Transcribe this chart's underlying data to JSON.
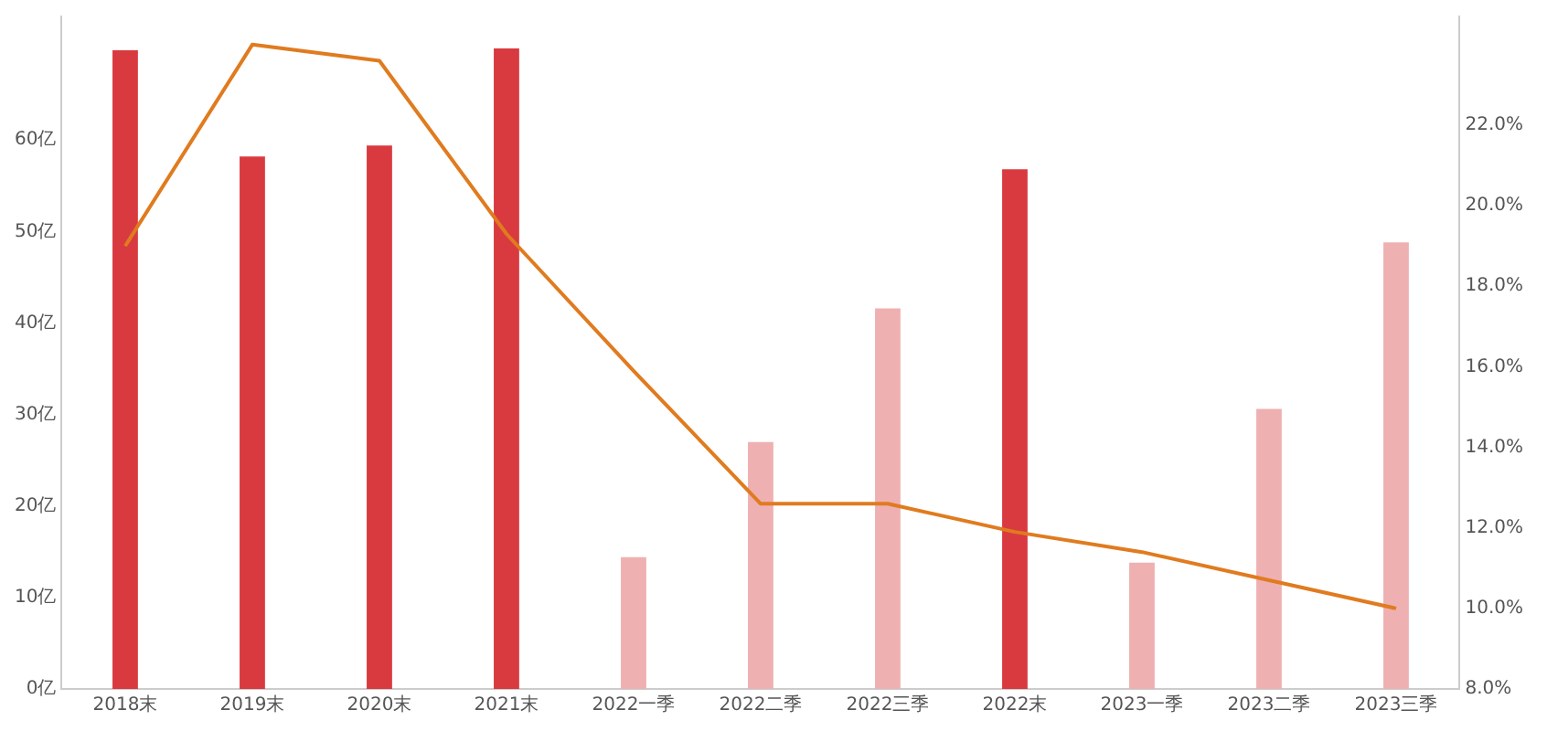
{
  "chart_data": {
    "type": "bar",
    "categories": [
      "2018末",
      "2019末",
      "2020末",
      "2021末",
      "2022一季",
      "2022二季",
      "2022三季",
      "2022末",
      "2023一季",
      "2023二季",
      "2023三季"
    ],
    "series": [
      {
        "colors": [
          "#d93a3f",
          "#d93a3f",
          "#d93a3f",
          "#d93a3f",
          "#efb0b2",
          "#efb0b2",
          "#efb0b2",
          "#d93a3f",
          "#efb0b2",
          "#efb0b2",
          "#efb0b2"
        ],
        "values": [
          69.8,
          58.2,
          59.4,
          70,
          14.4,
          27,
          41.6,
          56.8,
          13.8,
          30.6,
          48.8
        ]
      },
      {
        "type": "line",
        "axis": "y2",
        "color": "#e07b1f",
        "values": [
          19.0,
          24.0,
          23.6,
          19.3,
          15.9,
          12.6,
          12.6,
          11.9,
          11.4,
          10.7,
          10.0
        ]
      }
    ],
    "ylim": [
      0,
      73.5
    ],
    "yticks": [
      {
        "value": 0,
        "label": "0亿"
      },
      {
        "value": 10,
        "label": "10亿"
      },
      {
        "value": 20,
        "label": "20亿"
      },
      {
        "value": 30,
        "label": "30亿"
      },
      {
        "value": 40,
        "label": "40亿"
      },
      {
        "value": 50,
        "label": "50亿"
      },
      {
        "value": 60,
        "label": "60亿"
      }
    ],
    "y2lim": [
      8,
      24.7
    ],
    "y2ticks": [
      {
        "value": 8,
        "label": "8.0%"
      },
      {
        "value": 10,
        "label": "10.0%"
      },
      {
        "value": 12,
        "label": "12.0%"
      },
      {
        "value": 14,
        "label": "14.0%"
      },
      {
        "value": 16,
        "label": "16.0%"
      },
      {
        "value": 18,
        "label": "18.0%"
      },
      {
        "value": 20,
        "label": "20.0%"
      },
      {
        "value": 22,
        "label": "22.0%"
      }
    ],
    "grid": false,
    "legend": false,
    "marker": "none",
    "line_style": "solid"
  }
}
